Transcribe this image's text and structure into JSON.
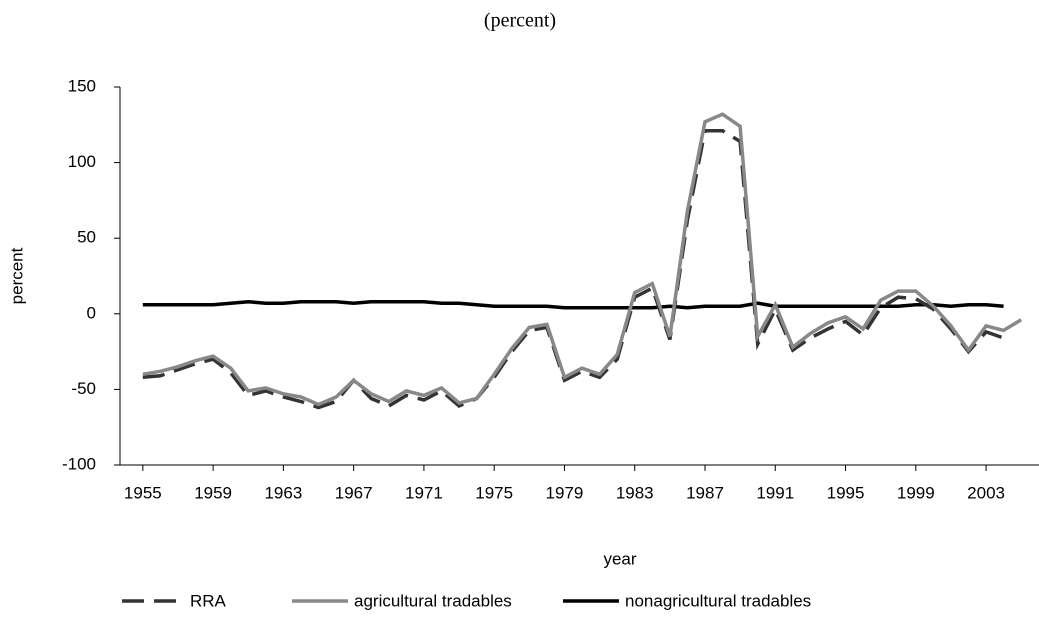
{
  "chart_data": {
    "type": "line",
    "title": "(percent)",
    "x_label": "year",
    "y_label": "percent",
    "x": [
      1955,
      1956,
      1957,
      1958,
      1959,
      1960,
      1961,
      1962,
      1963,
      1964,
      1965,
      1966,
      1967,
      1968,
      1969,
      1970,
      1971,
      1972,
      1973,
      1974,
      1975,
      1976,
      1977,
      1978,
      1979,
      1980,
      1981,
      1982,
      1983,
      1984,
      1985,
      1986,
      1987,
      1988,
      1989,
      1990,
      1991,
      1992,
      1993,
      1994,
      1995,
      1996,
      1997,
      1998,
      1999,
      2000,
      2001,
      2002,
      2003,
      2004,
      2005
    ],
    "series": [
      {
        "name": "RRA",
        "color": "#333333",
        "dash": true,
        "values": [
          -42,
          -41,
          -37,
          -33,
          -30,
          -39,
          -54,
          -51,
          -55,
          -58,
          -62,
          -58,
          -44,
          -56,
          -61,
          -54,
          -57,
          -51,
          -61,
          -56,
          -42,
          -25,
          -11,
          -9,
          -44,
          -38,
          -42,
          -30,
          11,
          17,
          -17,
          62,
          121,
          121,
          114,
          -20,
          3,
          -24,
          -16,
          -10,
          -5,
          -14,
          4,
          11,
          10,
          3,
          -10,
          -25,
          -12,
          -16,
          null
        ]
      },
      {
        "name": "agricultural tradables",
        "color": "#888888",
        "dash": false,
        "values": [
          -40,
          -38,
          -35,
          -31,
          -28,
          -36,
          -51,
          -49,
          -53,
          -55,
          -60,
          -55,
          -44,
          -53,
          -58,
          -51,
          -54,
          -49,
          -59,
          -56,
          -40,
          -23,
          -9,
          -7,
          -42,
          -36,
          -40,
          -27,
          14,
          20,
          -15,
          68,
          127,
          132,
          124,
          -15,
          6,
          -22,
          -13,
          -6,
          -2,
          -10,
          9,
          15,
          15,
          5,
          -8,
          -24,
          -8,
          -11,
          -4
        ]
      },
      {
        "name": "nonagricultural tradables",
        "color": "#000000",
        "dash": false,
        "values": [
          6,
          6,
          6,
          6,
          6,
          7,
          8,
          7,
          7,
          8,
          8,
          8,
          7,
          8,
          8,
          8,
          8,
          7,
          7,
          6,
          5,
          5,
          5,
          5,
          4,
          4,
          4,
          4,
          4,
          4,
          5,
          4,
          5,
          5,
          5,
          7,
          5,
          5,
          5,
          5,
          5,
          5,
          5,
          5,
          6,
          6,
          5,
          6,
          6,
          5,
          null
        ]
      }
    ],
    "xlim": [
      1953.7,
      2005.5
    ],
    "xticks": [
      1955,
      1959,
      1963,
      1967,
      1971,
      1975,
      1979,
      1983,
      1987,
      1991,
      1995,
      1999,
      2003
    ],
    "ylim": [
      -100,
      150
    ],
    "yticks": [
      -100,
      -50,
      0,
      50,
      100,
      150
    ],
    "grid": false
  }
}
